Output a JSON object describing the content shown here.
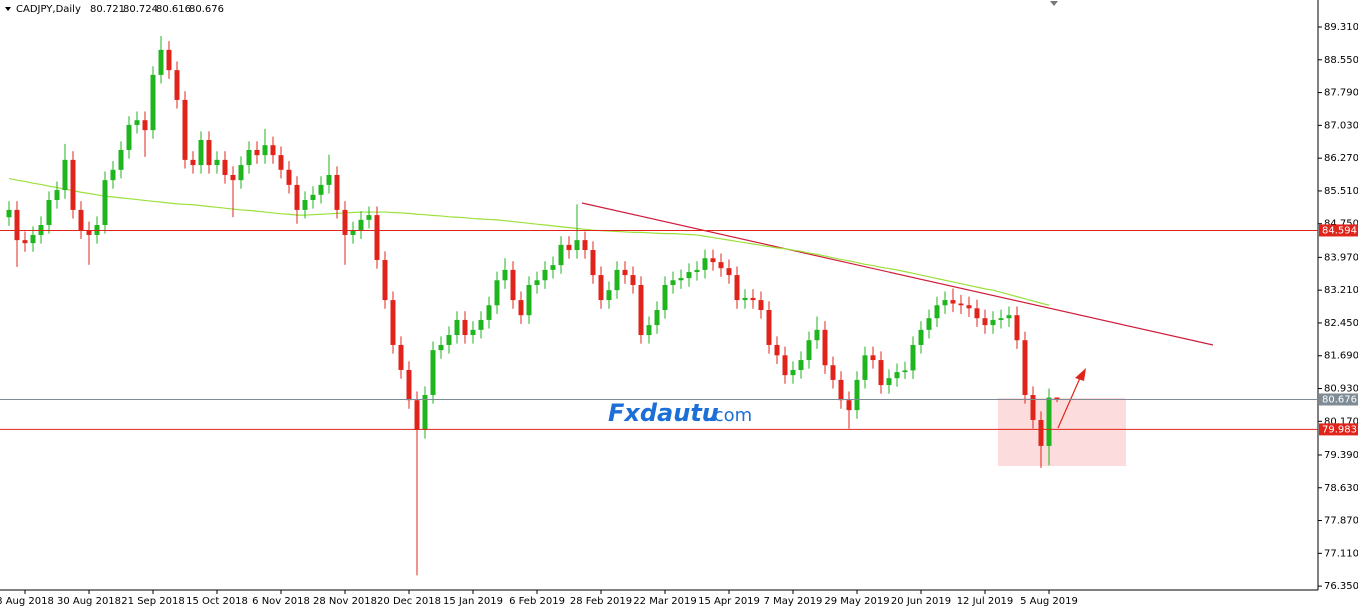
{
  "chart_data": {
    "type": "candlestick",
    "title": "CADJPY,Daily",
    "categories": [
      null,
      null,
      "8 Aug 2018",
      null,
      null,
      null,
      null,
      null,
      null,
      null,
      "30 Aug 2018",
      null,
      null,
      null,
      null,
      null,
      null,
      null,
      "21 Sep 2018",
      null,
      null,
      null,
      null,
      null,
      null,
      null,
      "15 Oct 2018",
      null,
      null,
      null,
      null,
      null,
      null,
      null,
      "6 Nov 2018",
      null,
      null,
      null,
      null,
      null,
      null,
      null,
      "28 Nov 2018",
      null,
      null,
      null,
      null,
      null,
      null,
      null,
      "20 Dec 2018",
      null,
      null,
      null,
      null,
      null,
      null,
      null,
      "15 Jan 2019",
      null,
      null,
      null,
      null,
      null,
      null,
      null,
      "6 Feb 2019",
      null,
      null,
      null,
      null,
      null,
      null,
      null,
      "28 Feb 2019",
      null,
      null,
      null,
      null,
      null,
      null,
      null,
      "22 Mar 2019",
      null,
      null,
      null,
      null,
      null,
      null,
      null,
      "15 Apr 2019",
      null,
      null,
      null,
      null,
      null,
      null,
      null,
      "7 May 2019",
      null,
      null,
      null,
      null,
      null,
      null,
      null,
      "29 May 2019",
      null,
      null,
      null,
      null,
      null,
      null,
      null,
      "20 Jun 2019",
      null,
      null,
      null,
      null,
      null,
      null,
      null,
      "12 Jul 2019",
      null,
      null,
      null,
      null,
      null,
      null,
      null,
      "5 Aug 2019",
      null
    ],
    "open": [
      84.9,
      85.07,
      84.37,
      84.3,
      84.49,
      84.72,
      85.3,
      85.53,
      86.23,
      85.07,
      84.6,
      84.49,
      84.72,
      85.76,
      86.0,
      86.46,
      87.04,
      87.15,
      86.92,
      88.2,
      88.78,
      88.31,
      87.62,
      86.23,
      86.11,
      86.69,
      86.11,
      86.23,
      85.88,
      85.76,
      86.11,
      86.46,
      86.34,
      86.57,
      86.34,
      86.0,
      85.65,
      85.07,
      85.3,
      85.42,
      85.65,
      85.88,
      85.07,
      84.49,
      84.6,
      84.84,
      84.95,
      83.91,
      82.98,
      81.94,
      81.36,
      80.66,
      79.97,
      80.78,
      81.82,
      81.94,
      82.17,
      82.52,
      82.17,
      82.29,
      82.52,
      82.86,
      83.44,
      83.68,
      82.98,
      82.63,
      83.33,
      83.44,
      83.68,
      83.79,
      84.26,
      84.14,
      84.37,
      84.14,
      83.56,
      82.98,
      83.21,
      83.68,
      83.56,
      83.33,
      82.17,
      82.4,
      82.75,
      83.33,
      83.44,
      83.49,
      83.63,
      83.68,
      83.95,
      83.86,
      83.72,
      83.56,
      82.98,
      83.03,
      82.98,
      82.75,
      81.94,
      81.7,
      81.24,
      81.36,
      81.59,
      82.05,
      82.29,
      81.47,
      81.13,
      80.66,
      80.43,
      81.13,
      81.7,
      81.59,
      81.01,
      81.17,
      81.31,
      81.35,
      81.94,
      82.29,
      82.56,
      82.86,
      82.98,
      82.9,
      82.86,
      82.79,
      82.56,
      82.4,
      82.52,
      82.56,
      82.63,
      82.05,
      80.78,
      80.2,
      79.6,
      80.721
    ],
    "high": [
      85.27,
      85.27,
      84.57,
      84.69,
      84.92,
      85.5,
      85.73,
      86.6,
      86.43,
      85.27,
      84.8,
      84.92,
      85.96,
      86.2,
      86.66,
      87.24,
      87.35,
      87.35,
      88.4,
      89.1,
      88.98,
      88.51,
      87.82,
      86.43,
      86.89,
      86.89,
      86.43,
      86.43,
      86.08,
      86.31,
      86.66,
      86.66,
      86.95,
      86.77,
      86.54,
      86.2,
      85.85,
      85.5,
      85.62,
      85.85,
      86.35,
      86.08,
      85.27,
      84.8,
      85.04,
      85.15,
      85.15,
      84.11,
      83.18,
      82.14,
      81.56,
      80.86,
      80.98,
      82.02,
      82.14,
      82.37,
      82.72,
      82.72,
      82.49,
      82.72,
      83.06,
      83.64,
      83.95,
      83.88,
      83.18,
      83.53,
      83.64,
      83.88,
      83.99,
      84.46,
      84.46,
      85.2,
      84.57,
      84.34,
      83.76,
      83.41,
      83.88,
      83.88,
      83.76,
      83.53,
      82.6,
      82.95,
      83.53,
      83.64,
      83.69,
      83.83,
      83.88,
      84.15,
      84.15,
      84.06,
      83.92,
      83.76,
      83.23,
      83.23,
      83.18,
      82.95,
      82.14,
      81.9,
      81.56,
      81.79,
      82.25,
      82.6,
      82.49,
      81.67,
      81.33,
      80.86,
      81.33,
      81.9,
      81.9,
      81.79,
      81.37,
      81.51,
      81.55,
      82.14,
      82.49,
      82.76,
      83.06,
      83.18,
      83.25,
      83.1,
      83.06,
      82.99,
      82.76,
      82.72,
      82.76,
      82.83,
      82.83,
      82.25,
      80.98,
      80.4,
      80.93,
      80.724
    ],
    "low": [
      84.7,
      83.75,
      84.1,
      84.1,
      84.29,
      84.52,
      85.1,
      85.33,
      84.87,
      84.4,
      83.8,
      84.29,
      84.52,
      85.56,
      85.8,
      86.26,
      86.84,
      86.3,
      86.72,
      88.0,
      88.11,
      87.42,
      86.03,
      85.91,
      85.91,
      85.91,
      85.91,
      85.68,
      84.9,
      85.56,
      85.91,
      86.14,
      86.14,
      86.14,
      85.8,
      85.45,
      84.75,
      84.87,
      85.1,
      85.22,
      85.45,
      84.87,
      83.8,
      84.29,
      84.4,
      84.64,
      83.71,
      82.78,
      81.74,
      81.16,
      80.46,
      76.6,
      79.77,
      80.58,
      81.62,
      81.74,
      81.97,
      81.97,
      81.97,
      82.09,
      82.32,
      82.66,
      83.24,
      82.78,
      82.43,
      82.43,
      83.13,
      83.24,
      83.48,
      83.59,
      83.94,
      83.94,
      83.94,
      83.36,
      82.78,
      82.78,
      83.01,
      83.36,
      83.13,
      81.97,
      81.97,
      82.2,
      82.55,
      83.13,
      83.24,
      83.29,
      83.43,
      83.48,
      83.66,
      83.52,
      83.36,
      82.78,
      82.78,
      82.78,
      82.55,
      81.74,
      81.5,
      81.04,
      81.04,
      81.16,
      81.39,
      81.85,
      81.27,
      80.93,
      80.46,
      80.0,
      80.23,
      80.93,
      81.39,
      80.81,
      80.81,
      80.97,
      81.15,
      81.15,
      81.74,
      82.09,
      82.36,
      82.66,
      82.7,
      82.66,
      82.59,
      82.36,
      82.2,
      82.2,
      82.32,
      82.36,
      81.85,
      80.58,
      80.0,
      79.09,
      79.15,
      80.616
    ],
    "close": [
      85.07,
      84.37,
      84.3,
      84.49,
      84.72,
      85.3,
      85.53,
      86.23,
      85.07,
      84.6,
      84.49,
      84.72,
      85.76,
      86.0,
      86.46,
      87.04,
      87.15,
      86.92,
      88.2,
      88.78,
      88.31,
      87.62,
      86.23,
      86.11,
      86.69,
      86.11,
      86.23,
      85.88,
      85.76,
      86.11,
      86.46,
      86.34,
      86.57,
      86.34,
      86.0,
      85.65,
      85.07,
      85.3,
      85.42,
      85.65,
      85.88,
      85.07,
      84.49,
      84.6,
      84.84,
      84.95,
      83.91,
      82.98,
      81.94,
      81.36,
      80.66,
      79.97,
      80.78,
      81.82,
      81.94,
      82.17,
      82.52,
      82.17,
      82.29,
      82.52,
      82.86,
      83.44,
      83.68,
      82.98,
      82.63,
      83.33,
      83.44,
      83.68,
      83.79,
      84.26,
      84.14,
      84.37,
      84.14,
      83.56,
      82.98,
      83.21,
      83.68,
      83.56,
      83.33,
      82.17,
      82.4,
      82.75,
      83.33,
      83.44,
      83.49,
      83.63,
      83.68,
      83.95,
      83.86,
      83.72,
      83.56,
      82.98,
      83.03,
      82.98,
      82.75,
      81.94,
      81.7,
      81.24,
      81.36,
      81.59,
      82.05,
      82.29,
      81.47,
      81.13,
      80.66,
      80.43,
      81.13,
      81.7,
      81.59,
      81.01,
      81.17,
      81.31,
      81.35,
      81.94,
      82.29,
      82.56,
      82.86,
      82.98,
      82.9,
      82.86,
      82.79,
      82.56,
      82.4,
      82.52,
      82.56,
      82.63,
      82.05,
      80.78,
      80.2,
      79.6,
      80.72,
      80.676
    ],
    "up_color": "#1fb51f",
    "down_color": "#e0241b",
    "moving_average": {
      "color": "#9be03c",
      "values": [
        85.8,
        85.76,
        85.73,
        85.69,
        85.66,
        85.62,
        85.59,
        85.55,
        85.52,
        85.48,
        85.45,
        85.42,
        85.39,
        85.37,
        85.35,
        85.33,
        85.31,
        85.29,
        85.27,
        85.25,
        85.23,
        85.21,
        85.2,
        85.19,
        85.17,
        85.15,
        85.13,
        85.11,
        85.09,
        85.07,
        85.06,
        85.04,
        85.02,
        85.0,
        84.98,
        84.97,
        84.95,
        84.95,
        84.96,
        84.97,
        84.98,
        84.99,
        85.0,
        85.01,
        85.02,
        85.02,
        85.02,
        85.02,
        85.01,
        85.0,
        84.99,
        84.97,
        84.96,
        84.94,
        84.93,
        84.91,
        84.9,
        84.89,
        84.87,
        84.86,
        84.85,
        84.84,
        84.82,
        84.8,
        84.78,
        84.76,
        84.74,
        84.72,
        84.7,
        84.68,
        84.66,
        84.64,
        84.62,
        84.6,
        84.59,
        84.58,
        84.57,
        84.56,
        84.55,
        84.55,
        84.54,
        84.53,
        84.52,
        84.52,
        84.51,
        84.5,
        84.49,
        84.46,
        84.43,
        84.4,
        84.37,
        84.34,
        84.31,
        84.28,
        84.25,
        84.22,
        84.19,
        84.17,
        84.14,
        84.11,
        84.07,
        84.04,
        84.0,
        83.96,
        83.92,
        83.89,
        83.85,
        83.81,
        83.78,
        83.74,
        83.71,
        83.68,
        83.64,
        83.6,
        83.56,
        83.52,
        83.48,
        83.44,
        83.4,
        83.36,
        83.32,
        83.28,
        83.24,
        83.21,
        83.16,
        83.11,
        83.06,
        83.01,
        82.96,
        82.91,
        82.86,
        null
      ]
    },
    "ylim": [
      76.26,
      89.82
    ],
    "yticks": [
      {
        "value": 89.31,
        "label": "89.310"
      },
      {
        "value": 88.55,
        "label": "88.550"
      },
      {
        "value": 87.79,
        "label": "87.790"
      },
      {
        "value": 87.03,
        "label": "87.030"
      },
      {
        "value": 86.27,
        "label": "86.270"
      },
      {
        "value": 85.51,
        "label": "85.510"
      },
      {
        "value": 84.75,
        "label": "84.750"
      },
      {
        "value": 83.97,
        "label": "83.970"
      },
      {
        "value": 83.21,
        "label": "83.210"
      },
      {
        "value": 82.45,
        "label": "82.450"
      },
      {
        "value": 81.69,
        "label": "81.690"
      },
      {
        "value": 80.93,
        "label": "80.930"
      },
      {
        "value": 80.17,
        "label": "80.170"
      },
      {
        "value": 79.39,
        "label": "79.390"
      },
      {
        "value": 78.63,
        "label": "78.630"
      },
      {
        "value": 77.87,
        "label": "77.870"
      },
      {
        "value": 77.11,
        "label": "77.110"
      },
      {
        "value": 76.35,
        "label": "76.350"
      }
    ],
    "price_lines": [
      {
        "value": 84.594,
        "label": "84.594",
        "color": "#e0241b"
      },
      {
        "value": 80.676,
        "label": "80.676",
        "color": "#7f8c96"
      },
      {
        "value": 79.983,
        "label": "79.983",
        "color": "#e0241b"
      }
    ],
    "watermark": {
      "brand": "Fxdautu",
      "suffix": ".com"
    }
  }
}
